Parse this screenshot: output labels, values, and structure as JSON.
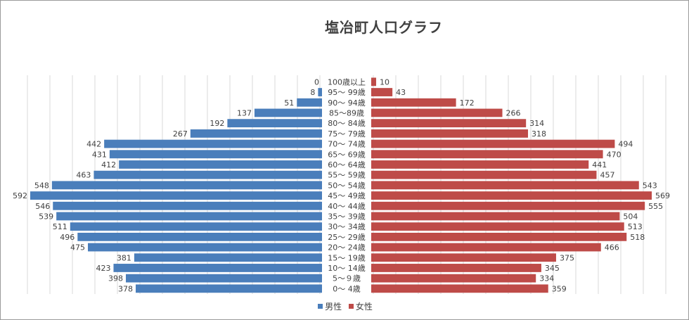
{
  "chart_data": {
    "type": "bar",
    "orientation": "horizontal",
    "layout": "population-pyramid",
    "title": "塩冶町人口グラフ",
    "categories": [
      "100歳以上",
      "95～ 99歳",
      "90～ 94歳",
      "85～89歳",
      "80～ 84歳",
      "75～ 79歳",
      "70～ 74歳",
      "65～ 69歳",
      "60～ 64歳",
      "55～ 59歳",
      "50～ 54歳",
      "45～ 49歳",
      "40～ 44歳",
      "35～ 39歳",
      "30～ 34歳",
      "25～ 29歳",
      "20～ 24歳",
      "15～ 19歳",
      "10～ 14歳",
      "5～９歳",
      "0～ 4歳"
    ],
    "series": [
      {
        "name": "男性",
        "color": "#4a7ebb",
        "values": [
          0,
          8,
          51,
          137,
          192,
          267,
          442,
          431,
          412,
          463,
          548,
          592,
          546,
          539,
          511,
          496,
          475,
          381,
          423,
          398,
          378
        ]
      },
      {
        "name": "女性",
        "color": "#be4b48",
        "values": [
          10,
          43,
          172,
          266,
          314,
          318,
          494,
          470,
          441,
          457,
          543,
          569,
          555,
          504,
          513,
          518,
          466,
          375,
          345,
          334,
          359
        ]
      }
    ],
    "grid": true,
    "legend_position": "bottom"
  }
}
